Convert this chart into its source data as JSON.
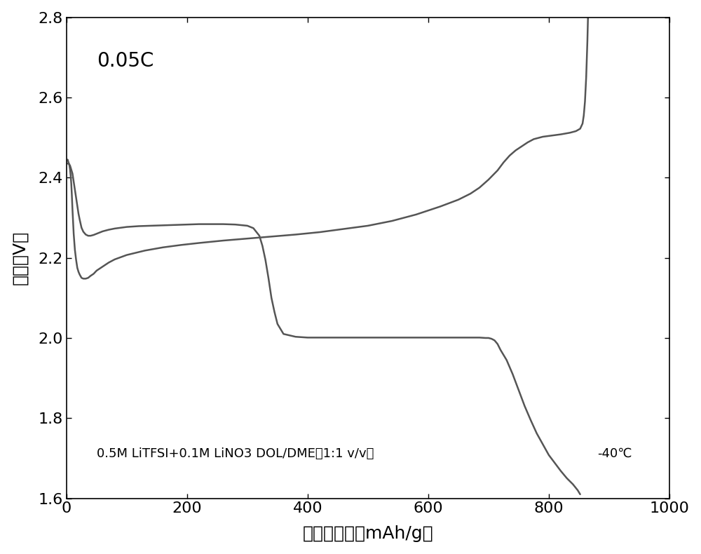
{
  "title_text": "0.05C",
  "annotation_text": "0.5M LiTFSI+0.1M LiNO3 DOL/DME（1:1 v/v）",
  "annotation_text2": "-40℃",
  "xlabel": "放电比容量（mAh/g）",
  "ylabel": "电压（V）",
  "xlim": [
    0,
    1000
  ],
  "ylim": [
    1.6,
    2.8
  ],
  "xticks": [
    0,
    200,
    400,
    600,
    800,
    1000
  ],
  "yticks": [
    1.6,
    1.8,
    2.0,
    2.2,
    2.4,
    2.6,
    2.8
  ],
  "line_color": "#555555",
  "line_width": 1.8,
  "bg_color": "#ffffff",
  "discharge_x": [
    2,
    4,
    6,
    8,
    10,
    12,
    14,
    16,
    18,
    20,
    22,
    25,
    28,
    32,
    36,
    40,
    45,
    50,
    60,
    70,
    80,
    100,
    120,
    140,
    160,
    180,
    200,
    220,
    240,
    260,
    280,
    300,
    310,
    320,
    325,
    330,
    335,
    340,
    345,
    350,
    360,
    380,
    400,
    430,
    460,
    490,
    520,
    550,
    580,
    610,
    640,
    660,
    675,
    685,
    695,
    700,
    705,
    710,
    715,
    720,
    730,
    740,
    750,
    760,
    770,
    780,
    790,
    800,
    810,
    820,
    830,
    840,
    848,
    852
  ],
  "discharge_y": [
    2.435,
    2.435,
    2.43,
    2.42,
    2.41,
    2.39,
    2.37,
    2.35,
    2.33,
    2.31,
    2.295,
    2.275,
    2.265,
    2.258,
    2.255,
    2.255,
    2.257,
    2.26,
    2.266,
    2.27,
    2.273,
    2.277,
    2.279,
    2.28,
    2.281,
    2.282,
    2.283,
    2.284,
    2.284,
    2.284,
    2.283,
    2.28,
    2.274,
    2.255,
    2.23,
    2.195,
    2.15,
    2.1,
    2.065,
    2.035,
    2.01,
    2.003,
    2.001,
    2.001,
    2.001,
    2.001,
    2.001,
    2.001,
    2.001,
    2.001,
    2.001,
    2.001,
    2.001,
    2.001,
    2.0,
    2.0,
    1.998,
    1.994,
    1.985,
    1.97,
    1.945,
    1.91,
    1.87,
    1.83,
    1.795,
    1.762,
    1.735,
    1.708,
    1.688,
    1.668,
    1.65,
    1.635,
    1.62,
    1.61
  ],
  "charge_x": [
    2,
    3,
    4,
    5,
    6,
    7,
    8,
    9,
    10,
    12,
    14,
    16,
    18,
    20,
    22,
    25,
    28,
    32,
    36,
    40,
    45,
    50,
    60,
    70,
    80,
    100,
    130,
    160,
    190,
    220,
    260,
    300,
    340,
    380,
    420,
    460,
    500,
    540,
    580,
    620,
    650,
    670,
    685,
    700,
    715,
    725,
    735,
    745,
    755,
    765,
    775,
    790,
    805,
    820,
    835,
    845,
    852,
    856,
    858,
    860,
    862,
    864,
    865
  ],
  "charge_y": [
    2.445,
    2.44,
    2.435,
    2.43,
    2.42,
    2.405,
    2.385,
    2.355,
    2.32,
    2.26,
    2.22,
    2.195,
    2.175,
    2.165,
    2.158,
    2.15,
    2.148,
    2.148,
    2.15,
    2.155,
    2.16,
    2.168,
    2.178,
    2.188,
    2.196,
    2.207,
    2.218,
    2.226,
    2.232,
    2.237,
    2.243,
    2.248,
    2.253,
    2.258,
    2.264,
    2.272,
    2.28,
    2.292,
    2.308,
    2.328,
    2.345,
    2.36,
    2.375,
    2.395,
    2.418,
    2.438,
    2.455,
    2.468,
    2.478,
    2.488,
    2.496,
    2.502,
    2.505,
    2.508,
    2.512,
    2.516,
    2.522,
    2.535,
    2.555,
    2.59,
    2.65,
    2.74,
    2.8
  ]
}
